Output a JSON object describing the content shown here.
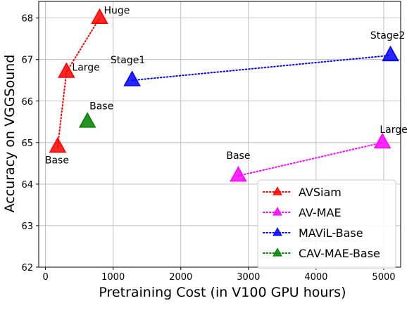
{
  "chart_data": {
    "type": "scatter",
    "xlabel": "Pretraining Cost (in V100 GPU hours)",
    "ylabel": "Accuracy on VGGSound",
    "xlim": [
      -100,
      5250
    ],
    "ylim": [
      62,
      68.4
    ],
    "xticks": [
      0,
      1000,
      2000,
      3000,
      4000,
      5000
    ],
    "yticks": [
      62,
      63,
      64,
      65,
      66,
      67,
      68
    ],
    "grid": true,
    "legend_position": "bottom-right",
    "series": [
      {
        "name": "AVSiam",
        "color": "#ff0000",
        "points": [
          {
            "x": 180,
            "y": 64.9,
            "label": "Base"
          },
          {
            "x": 310,
            "y": 66.7,
            "label": "Large"
          },
          {
            "x": 800,
            "y": 68.0,
            "label": "Huge"
          }
        ]
      },
      {
        "name": "AV-MAE",
        "color": "#ff00ff",
        "points": [
          {
            "x": 2850,
            "y": 64.2,
            "label": "Base"
          },
          {
            "x": 4980,
            "y": 65.0,
            "label": "Large"
          }
        ]
      },
      {
        "name": "MAViL-Base",
        "color": "#0000ff",
        "points": [
          {
            "x": 1280,
            "y": 66.5,
            "label": "Stage1"
          },
          {
            "x": 5100,
            "y": 67.1,
            "label": "Stage2"
          }
        ]
      },
      {
        "name": "CAV-MAE-Base",
        "color": "#008000",
        "points": [
          {
            "x": 620,
            "y": 65.5,
            "label": "Base"
          }
        ]
      }
    ]
  }
}
